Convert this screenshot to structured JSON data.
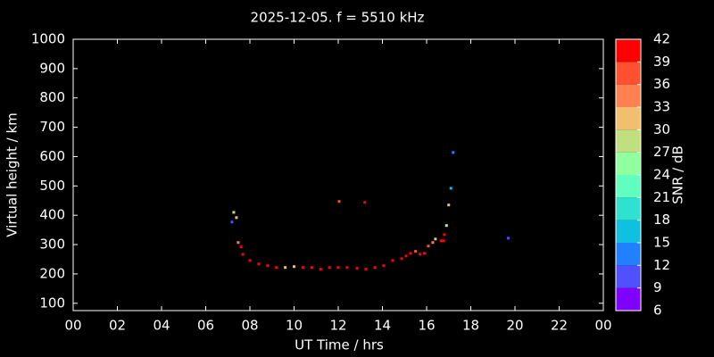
{
  "chart_data": {
    "type": "scatter",
    "title": "2025-12-05. f = 5510 kHz",
    "xlabel": "UT Time / hrs",
    "ylabel": "Virtual height / km",
    "xlim": [
      0,
      24
    ],
    "xticks": [
      {
        "value": 0,
        "label": "00"
      },
      {
        "value": 2,
        "label": "02"
      },
      {
        "value": 4,
        "label": "04"
      },
      {
        "value": 6,
        "label": "06"
      },
      {
        "value": 8,
        "label": "08"
      },
      10,
      12,
      14,
      16,
      18,
      20,
      22,
      {
        "value": 24,
        "label": "00"
      }
    ],
    "ylim": [
      75,
      1000
    ],
    "yticks": [
      100,
      200,
      300,
      400,
      500,
      600,
      700,
      800,
      900,
      1000
    ],
    "x": [
      7.19,
      7.27,
      7.39,
      7.47,
      7.6,
      7.68,
      8.0,
      8.4,
      8.8,
      9.2,
      9.6,
      10.0,
      10.4,
      10.8,
      11.2,
      11.6,
      12.0,
      12.4,
      12.85,
      13.25,
      13.66,
      14.06,
      14.46,
      14.87,
      15.07,
      15.27,
      15.5,
      15.7,
      15.9,
      16.08,
      16.28,
      16.4,
      16.65,
      16.77,
      16.8,
      16.9,
      17.0,
      17.1,
      17.2,
      12.04,
      13.2,
      19.7
    ],
    "values": [
      377,
      410,
      392,
      307,
      292,
      267,
      246,
      234,
      228,
      222,
      222,
      225,
      222,
      222,
      216,
      222,
      222,
      222,
      219,
      216,
      222,
      228,
      246,
      252,
      261,
      270,
      277,
      267,
      270,
      295,
      307,
      319,
      313,
      313,
      334,
      365,
      435,
      492,
      614,
      447,
      444,
      322
    ],
    "snr": [
      9,
      27,
      30,
      33,
      40,
      41,
      41,
      40,
      41,
      40,
      30,
      30,
      41,
      41,
      40,
      41,
      41,
      41,
      41,
      41,
      40,
      41,
      40,
      41,
      41,
      40,
      36,
      41,
      41,
      38,
      33,
      30,
      41,
      41,
      39,
      24,
      30,
      15,
      13,
      36,
      41,
      10
    ],
    "colorbar": {
      "label": "SNR / dB",
      "lim": [
        6,
        42
      ],
      "ticks": [
        6,
        9,
        12,
        15,
        18,
        21,
        24,
        27,
        30,
        33,
        36,
        39,
        42
      ],
      "colors": [
        "#8000ff",
        "#5050ff",
        "#2080ff",
        "#10c0e0",
        "#30e0d0",
        "#60ffc0",
        "#90ffa0",
        "#c0e080",
        "#f0c070",
        "#ff8050",
        "#ff5030",
        "#ff0000"
      ]
    }
  }
}
